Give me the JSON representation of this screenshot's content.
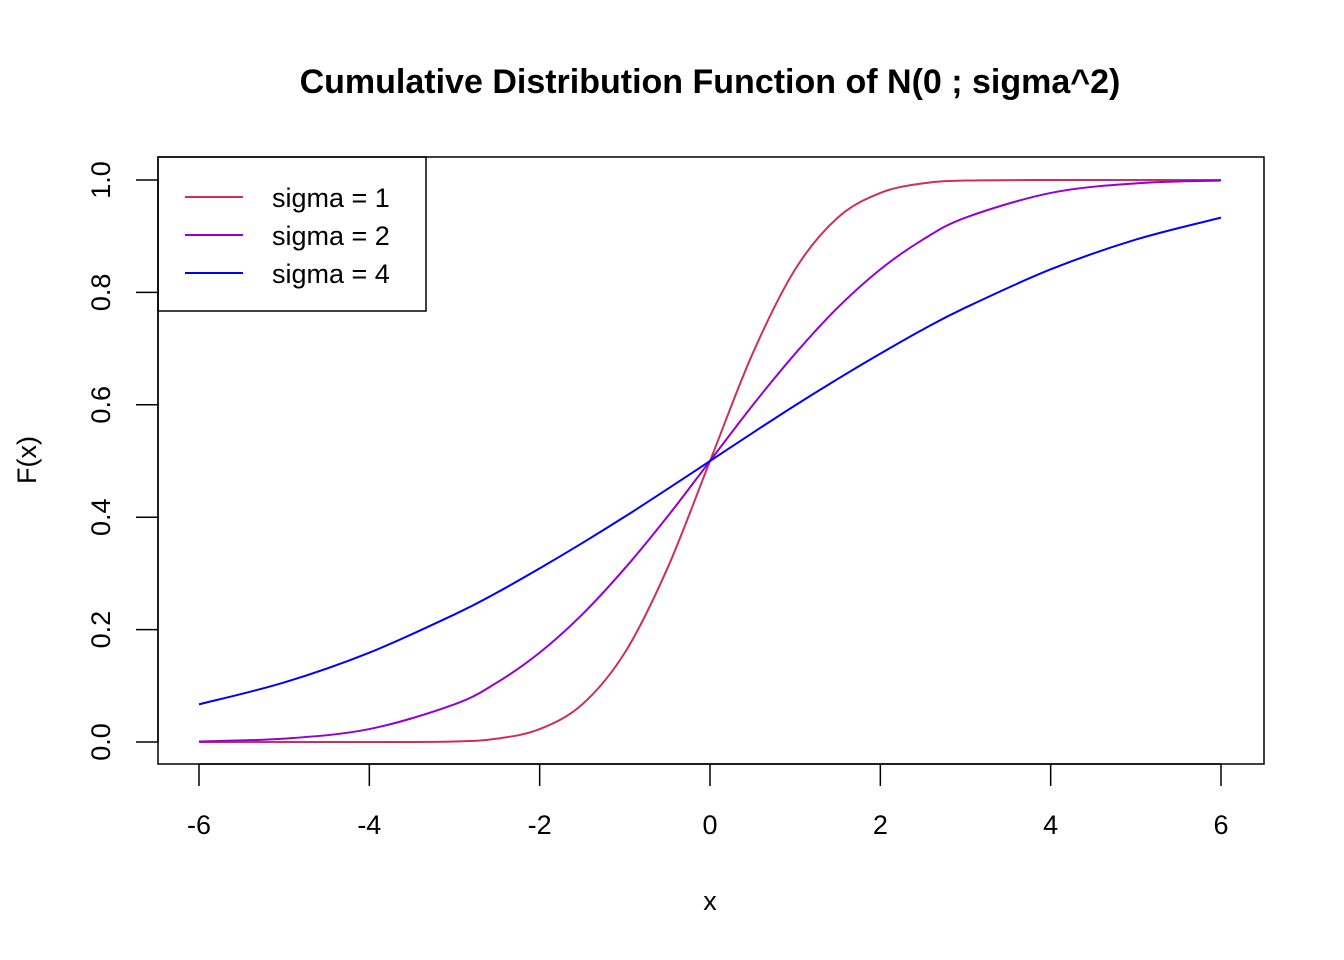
{
  "chart_data": {
    "type": "line",
    "title": "Cumulative Distribution Function of N(0 ; sigma^2)",
    "xlabel": "x",
    "ylabel": "F(x)",
    "xlim": [
      -6,
      6
    ],
    "ylim": [
      0,
      1
    ],
    "x_ticks": [
      -6,
      -4,
      -2,
      0,
      2,
      4,
      6
    ],
    "x_tick_labels": [
      "-6",
      "-4",
      "-2",
      "0",
      "2",
      "4",
      "6"
    ],
    "y_ticks": [
      0,
      0.2,
      0.4,
      0.6,
      0.8,
      1
    ],
    "y_tick_labels": [
      "0.0",
      "0.2",
      "0.4",
      "0.6",
      "0.8",
      "1.0"
    ],
    "grid": false,
    "legend_position": "top-left",
    "x": [
      -6,
      -5,
      -4,
      -3,
      -2.5,
      -2,
      -1.5,
      -1,
      -0.5,
      0,
      0.5,
      1,
      1.5,
      2,
      2.5,
      3,
      4,
      5,
      6
    ],
    "series": [
      {
        "name": "sigma = 1",
        "color": "#CD2F5C",
        "values": [
          0.0,
          0.0,
          0.0,
          0.001,
          0.006,
          0.023,
          0.067,
          0.159,
          0.309,
          0.5,
          0.691,
          0.841,
          0.933,
          0.977,
          0.994,
          0.999,
          1.0,
          1.0,
          1.0
        ]
      },
      {
        "name": "sigma = 2",
        "color": "#9400D3",
        "values": [
          0.001,
          0.006,
          0.023,
          0.067,
          0.106,
          0.159,
          0.227,
          0.309,
          0.401,
          0.5,
          0.599,
          0.691,
          0.773,
          0.841,
          0.894,
          0.933,
          0.977,
          0.994,
          0.999
        ]
      },
      {
        "name": "sigma = 4",
        "color": "#0000FF",
        "values": [
          0.067,
          0.106,
          0.159,
          0.227,
          0.266,
          0.309,
          0.354,
          0.401,
          0.45,
          0.5,
          0.55,
          0.599,
          0.646,
          0.691,
          0.734,
          0.773,
          0.841,
          0.894,
          0.933
        ]
      }
    ]
  }
}
